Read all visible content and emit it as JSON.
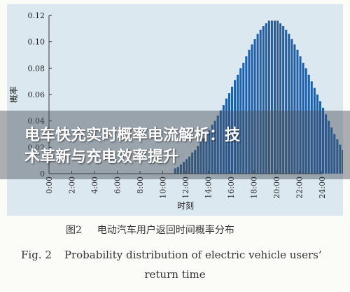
{
  "banner": {
    "line1": "电车快充实时概率电流解析：技",
    "line2": "术革新与充电效率提升"
  },
  "chart_data": {
    "type": "bar",
    "xlabel": "时刻",
    "ylabel": "概率",
    "ylim": [
      0,
      0.12
    ],
    "yticks": [
      "0",
      "0.02",
      "0.04",
      "0.06",
      "0.08",
      "0.10",
      "0.12"
    ],
    "xlim": [
      0,
      24
    ],
    "xticks": [
      "0:00",
      "2:00",
      "4:00",
      "6:00",
      "8:00",
      "10:00",
      "12:00",
      "14:00",
      "16:00",
      "18:00",
      "20:00",
      "22:00",
      "24:00"
    ],
    "bar_color": "#1f5fa8",
    "background": "#dce8ef",
    "bar_width_hours": 0.25,
    "bin_start_hour": 11,
    "values": [
      0.004,
      0.005,
      0.007,
      0.009,
      0.011,
      0.013,
      0.016,
      0.018,
      0.021,
      0.024,
      0.027,
      0.03,
      0.033,
      0.037,
      0.04,
      0.044,
      0.048,
      0.052,
      0.057,
      0.061,
      0.066,
      0.071,
      0.075,
      0.08,
      0.084,
      0.089,
      0.094,
      0.098,
      0.102,
      0.106,
      0.109,
      0.112,
      0.114,
      0.116,
      0.116,
      0.116,
      0.116,
      0.114,
      0.112,
      0.109,
      0.106,
      0.102,
      0.098,
      0.094,
      0.089,
      0.084,
      0.08,
      0.075,
      0.07,
      0.065,
      0.06,
      0.055,
      0.05,
      0.045,
      0.04,
      0.035,
      0.03,
      0.026,
      0.022,
      0.018,
      0.015,
      0.012,
      0.009,
      0.007,
      0.005,
      0.004,
      0.003,
      0.002,
      0.002,
      0.001,
      0.001,
      0.001,
      0.0005,
      0.0005,
      0.0005,
      0.0005
    ]
  },
  "caption": {
    "cn_fig": "图2",
    "cn_text": "电动汽车用户返回时间概率分布",
    "en_fig": "Fig. 2",
    "en_text_1": "Probability distribution of electric vehicle users’",
    "en_text_2": "return time"
  }
}
